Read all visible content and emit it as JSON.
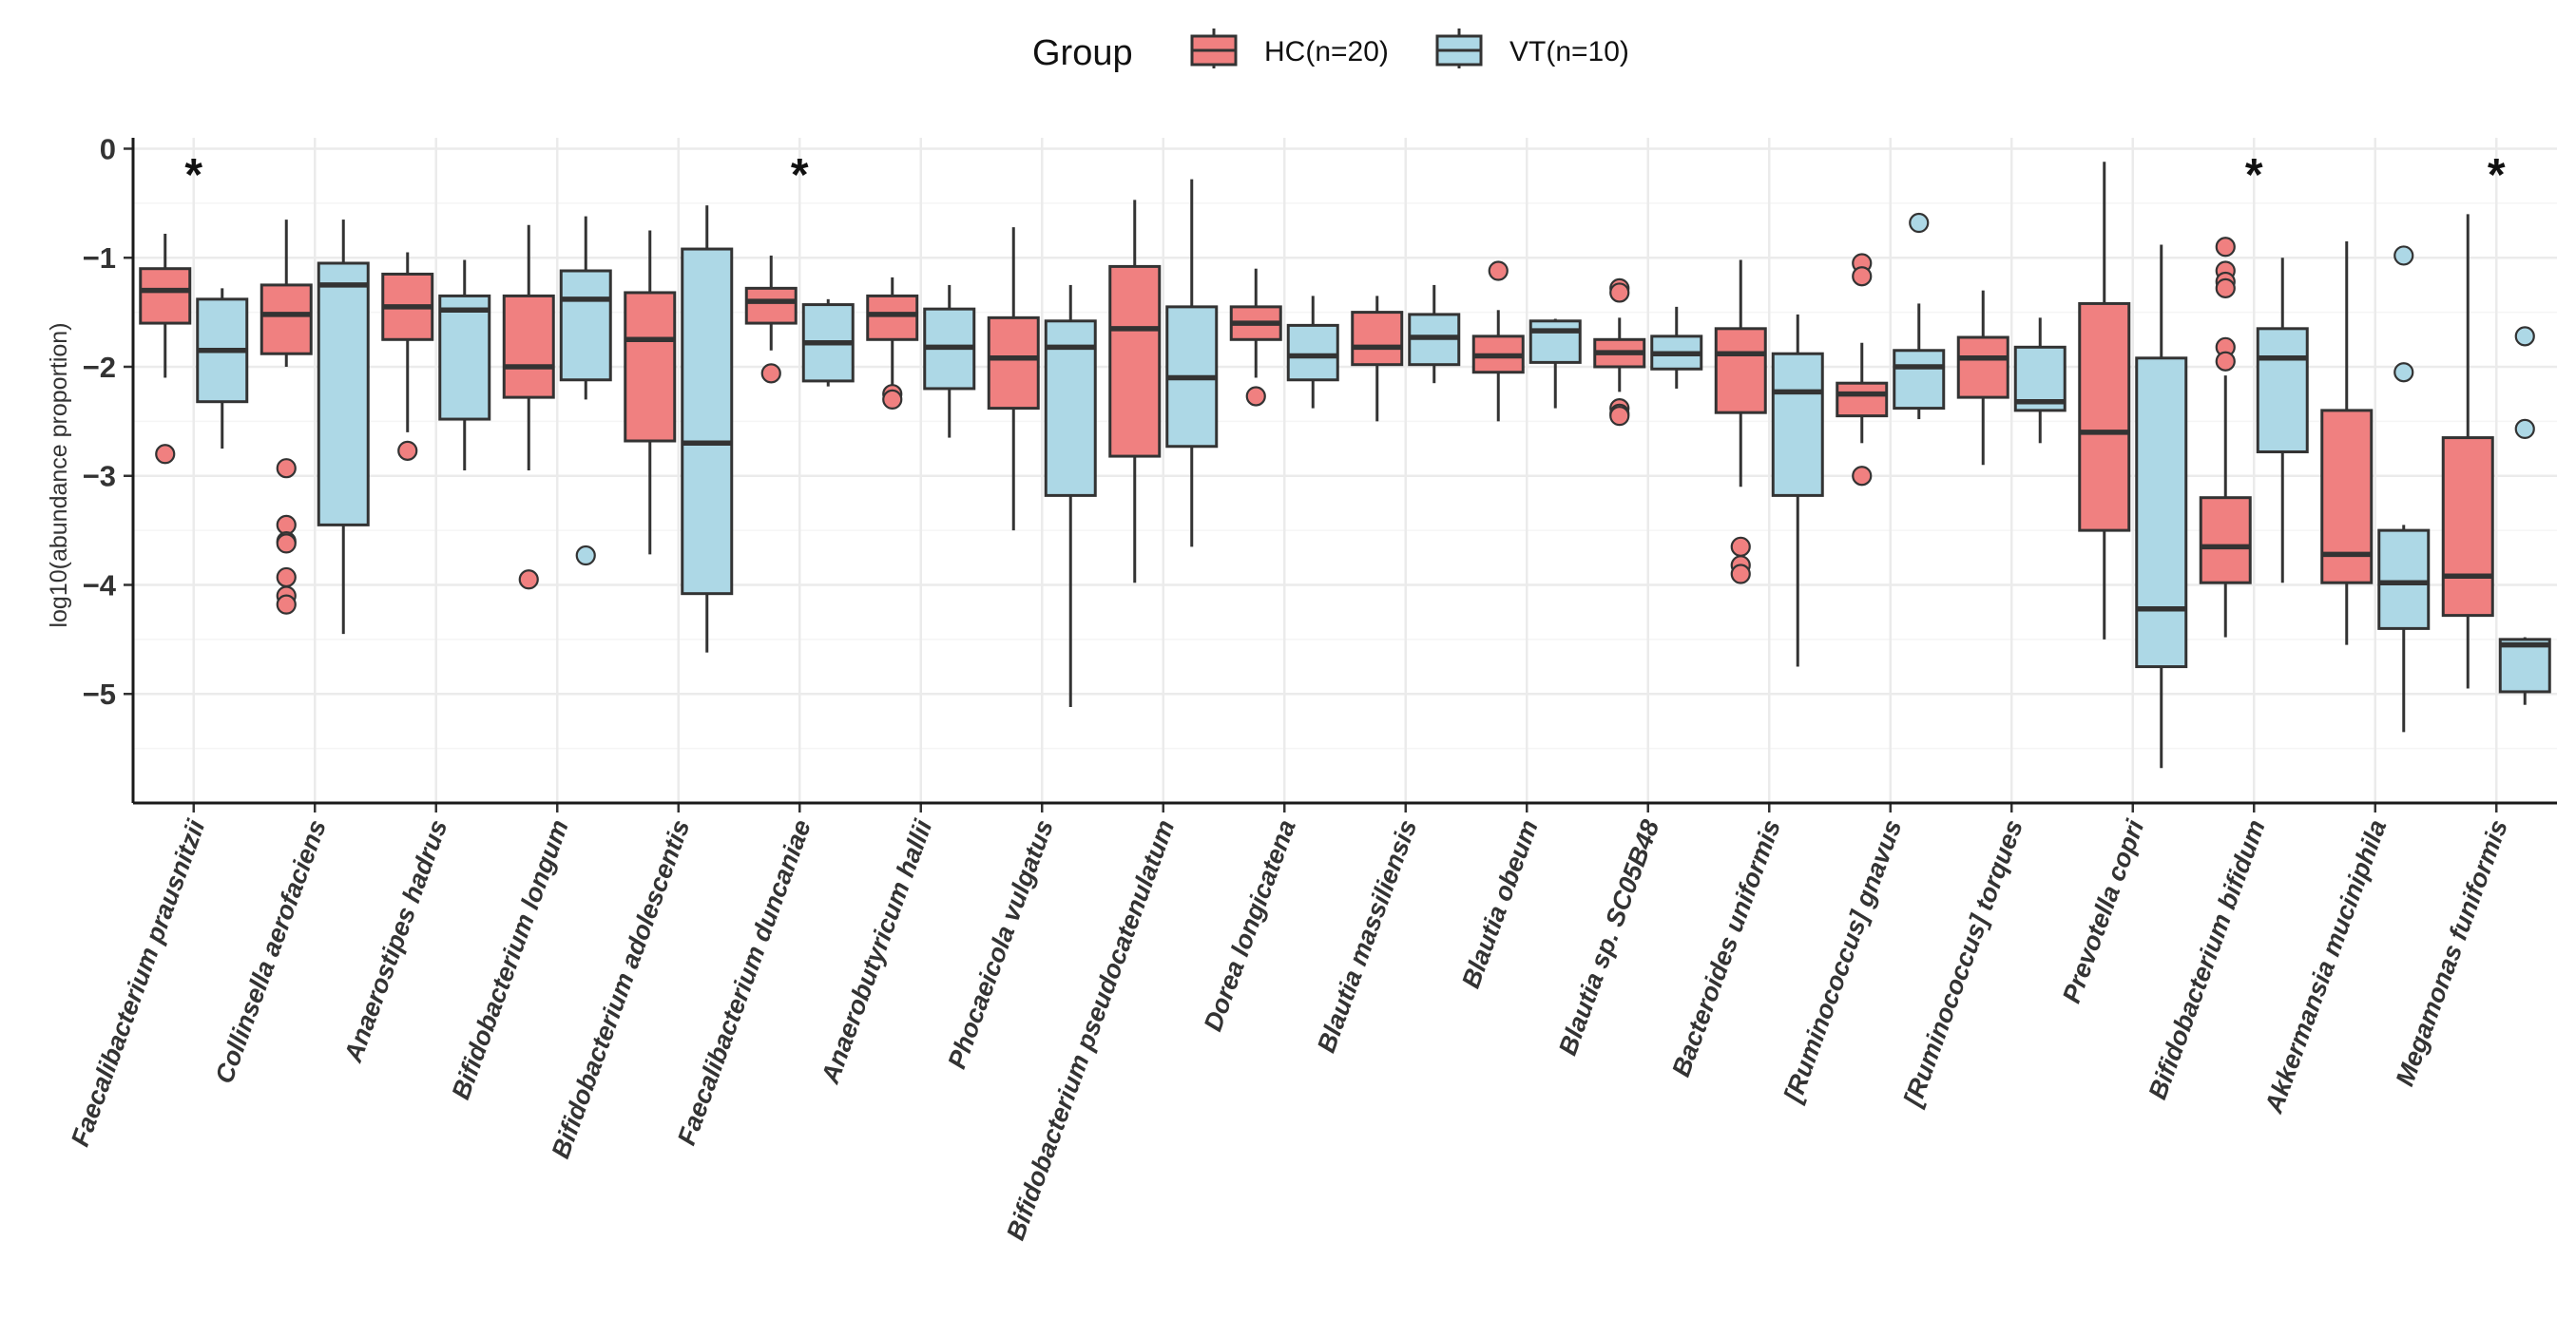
{
  "chart_data": {
    "type": "box",
    "title": "",
    "xlabel": "",
    "ylabel": "log10(abundance proportion)",
    "ylim": [
      -6,
      0.1
    ],
    "yticks": [
      0,
      -1,
      -2,
      -3,
      -4,
      -5
    ],
    "ytick_labels": [
      "0",
      "−1",
      "−2",
      "−3",
      "−4",
      "−5"
    ],
    "grid": true,
    "legend": {
      "title": "Group",
      "position": "top",
      "entries": [
        {
          "key": "HC",
          "label": "HC(n=20)",
          "color": "#F08080"
        },
        {
          "key": "VT",
          "label": "VT(n=10)",
          "color": "#ADD8E6"
        }
      ]
    },
    "significance_marker": "*",
    "categories": [
      {
        "name": "Faecalibacterium prausnitzii",
        "sig": true,
        "HC": {
          "wlo": -2.1,
          "q1": -1.6,
          "med": -1.3,
          "q3": -1.1,
          "whi": -0.78,
          "out": [
            -2.8
          ]
        },
        "VT": {
          "wlo": -2.75,
          "q1": -2.32,
          "med": -1.85,
          "q3": -1.38,
          "whi": -1.28,
          "out": []
        }
      },
      {
        "name": "Collinsella aerofaciens",
        "sig": false,
        "HC": {
          "wlo": -2.0,
          "q1": -1.88,
          "med": -1.52,
          "q3": -1.25,
          "whi": -0.65,
          "out": [
            -2.93,
            -3.45,
            -3.6,
            -3.62,
            -3.93,
            -4.1,
            -4.18
          ]
        },
        "VT": {
          "wlo": -4.45,
          "q1": -3.45,
          "med": -1.25,
          "q3": -1.05,
          "whi": -0.65,
          "out": []
        }
      },
      {
        "name": "Anaerostipes hadrus",
        "sig": false,
        "HC": {
          "wlo": -2.6,
          "q1": -1.75,
          "med": -1.45,
          "q3": -1.15,
          "whi": -0.95,
          "out": [
            -2.77
          ]
        },
        "VT": {
          "wlo": -2.95,
          "q1": -2.48,
          "med": -1.48,
          "q3": -1.35,
          "whi": -1.02,
          "out": []
        }
      },
      {
        "name": "Bifidobacterium longum",
        "sig": false,
        "HC": {
          "wlo": -2.95,
          "q1": -2.28,
          "med": -2.0,
          "q3": -1.35,
          "whi": -0.7,
          "out": [
            -3.95
          ]
        },
        "VT": {
          "wlo": -2.3,
          "q1": -2.12,
          "med": -1.38,
          "q3": -1.12,
          "whi": -0.62,
          "out": [
            -3.73
          ]
        }
      },
      {
        "name": "Bifidobacterium adolescentis",
        "sig": false,
        "HC": {
          "wlo": -3.72,
          "q1": -2.68,
          "med": -1.75,
          "q3": -1.32,
          "whi": -0.75,
          "out": []
        },
        "VT": {
          "wlo": -4.62,
          "q1": -4.08,
          "med": -2.7,
          "q3": -0.92,
          "whi": -0.52,
          "out": []
        }
      },
      {
        "name": "Faecalibacterium duncaniae",
        "sig": true,
        "HC": {
          "wlo": -1.85,
          "q1": -1.6,
          "med": -1.4,
          "q3": -1.28,
          "whi": -0.98,
          "out": [
            -2.06
          ]
        },
        "VT": {
          "wlo": -2.18,
          "q1": -2.13,
          "med": -1.78,
          "q3": -1.43,
          "whi": -1.38,
          "out": []
        }
      },
      {
        "name": "Anaerobutyricum hallii",
        "sig": false,
        "HC": {
          "wlo": -2.2,
          "q1": -1.75,
          "med": -1.52,
          "q3": -1.35,
          "whi": -1.18,
          "out": [
            -2.25,
            -2.3
          ]
        },
        "VT": {
          "wlo": -2.65,
          "q1": -2.2,
          "med": -1.82,
          "q3": -1.47,
          "whi": -1.25,
          "out": []
        }
      },
      {
        "name": "Phocaeicola vulgatus",
        "sig": false,
        "HC": {
          "wlo": -3.5,
          "q1": -2.38,
          "med": -1.92,
          "q3": -1.55,
          "whi": -0.72,
          "out": []
        },
        "VT": {
          "wlo": -5.12,
          "q1": -3.18,
          "med": -1.82,
          "q3": -1.58,
          "whi": -1.25,
          "out": []
        }
      },
      {
        "name": "Bifidobacterium pseudocatenulatum",
        "sig": false,
        "HC": {
          "wlo": -3.98,
          "q1": -2.82,
          "med": -1.65,
          "q3": -1.08,
          "whi": -0.47,
          "out": []
        },
        "VT": {
          "wlo": -3.65,
          "q1": -2.73,
          "med": -2.1,
          "q3": -1.45,
          "whi": -0.28,
          "out": []
        }
      },
      {
        "name": "Dorea longicatena",
        "sig": false,
        "HC": {
          "wlo": -2.1,
          "q1": -1.75,
          "med": -1.6,
          "q3": -1.45,
          "whi": -1.1,
          "out": [
            -2.27
          ]
        },
        "VT": {
          "wlo": -2.38,
          "q1": -2.12,
          "med": -1.9,
          "q3": -1.62,
          "whi": -1.35,
          "out": []
        }
      },
      {
        "name": "Blautia massiliensis",
        "sig": false,
        "HC": {
          "wlo": -2.5,
          "q1": -1.98,
          "med": -1.82,
          "q3": -1.5,
          "whi": -1.35,
          "out": []
        },
        "VT": {
          "wlo": -2.15,
          "q1": -1.98,
          "med": -1.73,
          "q3": -1.52,
          "whi": -1.25,
          "out": []
        }
      },
      {
        "name": "Blautia obeum",
        "sig": false,
        "HC": {
          "wlo": -2.5,
          "q1": -2.05,
          "med": -1.9,
          "q3": -1.72,
          "whi": -1.48,
          "out": [
            -1.12
          ]
        },
        "VT": {
          "wlo": -2.38,
          "q1": -1.96,
          "med": -1.67,
          "q3": -1.58,
          "whi": -1.56,
          "out": []
        }
      },
      {
        "name": "Blautia sp. SC05B48",
        "sig": false,
        "HC": {
          "wlo": -2.23,
          "q1": -2.0,
          "med": -1.87,
          "q3": -1.75,
          "whi": -1.55,
          "out": [
            -1.28,
            -1.32,
            -2.38,
            -2.43,
            -2.45
          ]
        },
        "VT": {
          "wlo": -2.2,
          "q1": -2.02,
          "med": -1.88,
          "q3": -1.72,
          "whi": -1.45,
          "out": []
        }
      },
      {
        "name": "Bacteroides uniformis",
        "sig": false,
        "HC": {
          "wlo": -3.1,
          "q1": -2.42,
          "med": -1.88,
          "q3": -1.65,
          "whi": -1.02,
          "out": [
            -3.65,
            -3.82,
            -3.9
          ]
        },
        "VT": {
          "wlo": -4.75,
          "q1": -3.18,
          "med": -2.23,
          "q3": -1.88,
          "whi": -1.52,
          "out": []
        }
      },
      {
        "name": "[Ruminococcus] gnavus",
        "sig": false,
        "HC": {
          "wlo": -2.7,
          "q1": -2.45,
          "med": -2.25,
          "q3": -2.15,
          "whi": -1.78,
          "out": [
            -1.05,
            -1.17,
            -3.0
          ]
        },
        "VT": {
          "wlo": -2.48,
          "q1": -2.38,
          "med": -2.0,
          "q3": -1.85,
          "whi": -1.42,
          "out": [
            -0.68
          ]
        }
      },
      {
        "name": "[Ruminococcus] torques",
        "sig": false,
        "HC": {
          "wlo": -2.9,
          "q1": -2.28,
          "med": -1.92,
          "q3": -1.73,
          "whi": -1.3,
          "out": []
        },
        "VT": {
          "wlo": -2.7,
          "q1": -2.4,
          "med": -2.32,
          "q3": -1.82,
          "whi": -1.55,
          "out": []
        }
      },
      {
        "name": "Prevotella copri",
        "sig": false,
        "HC": {
          "wlo": -4.5,
          "q1": -3.5,
          "med": -2.6,
          "q3": -1.42,
          "whi": -0.12,
          "out": []
        },
        "VT": {
          "wlo": -5.68,
          "q1": -4.75,
          "med": -4.22,
          "q3": -1.92,
          "whi": -0.88,
          "out": []
        }
      },
      {
        "name": "Bifidobacterium bifidum",
        "sig": true,
        "HC": {
          "wlo": -4.48,
          "q1": -3.98,
          "med": -3.65,
          "q3": -3.2,
          "whi": -2.08,
          "out": [
            -0.9,
            -1.12,
            -1.22,
            -1.28,
            -1.82,
            -1.95
          ]
        },
        "VT": {
          "wlo": -3.98,
          "q1": -2.78,
          "med": -1.92,
          "q3": -1.65,
          "whi": -1.0,
          "out": []
        }
      },
      {
        "name": "Akkermansia muciniphila",
        "sig": false,
        "HC": {
          "wlo": -4.55,
          "q1": -3.98,
          "med": -3.72,
          "q3": -2.4,
          "whi": -0.85,
          "out": []
        },
        "VT": {
          "wlo": -5.35,
          "q1": -4.4,
          "med": -3.98,
          "q3": -3.5,
          "whi": -3.45,
          "out": [
            -0.98,
            -2.05
          ]
        }
      },
      {
        "name": "Megamonas funiformis",
        "sig": true,
        "HC": {
          "wlo": -4.95,
          "q1": -4.28,
          "med": -3.92,
          "q3": -2.65,
          "whi": -0.6,
          "out": []
        },
        "VT": {
          "wlo": -5.1,
          "q1": -4.98,
          "med": -4.55,
          "q3": -4.5,
          "whi": -4.48,
          "out": [
            -1.72,
            -2.57
          ]
        }
      }
    ]
  }
}
